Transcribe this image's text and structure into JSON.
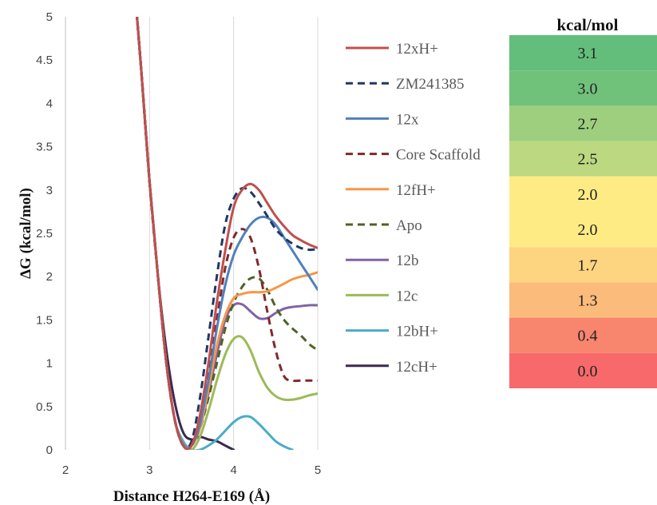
{
  "chart_data": {
    "type": "line",
    "xlabel": "Distance H264-E169 (Å)",
    "ylabel": "ΔG (kcal/mol)",
    "xlim": [
      2,
      5
    ],
    "ylim": [
      0,
      5
    ],
    "x_ticks": [
      "2",
      "3",
      "4",
      "5"
    ],
    "y_ticks": [
      "0",
      "0.5",
      "1",
      "1.5",
      "2",
      "2.5",
      "3",
      "3.5",
      "4",
      "4.5",
      "5"
    ],
    "grid": "vertical",
    "legend_position": "right",
    "series": [
      {
        "name": "12xH+",
        "color": "#c0504d",
        "dash": "solid",
        "x": [
          2.8,
          2.9,
          3.0,
          3.1,
          3.2,
          3.3,
          3.4,
          3.5,
          3.6,
          3.7,
          3.8,
          3.9,
          4.0,
          4.1,
          4.2,
          4.3,
          4.4,
          4.5,
          4.6,
          4.7,
          4.8,
          4.9,
          5.0
        ],
        "y": [
          5.6,
          4.4,
          3.1,
          2.0,
          1.0,
          0.35,
          0.05,
          0.05,
          0.4,
          1.0,
          1.7,
          2.3,
          2.8,
          3.0,
          3.07,
          3.0,
          2.85,
          2.7,
          2.58,
          2.48,
          2.42,
          2.37,
          2.33
        ]
      },
      {
        "name": "ZM241385",
        "color": "#1f3864",
        "dash": "dashed",
        "x": [
          2.8,
          2.9,
          3.0,
          3.1,
          3.2,
          3.3,
          3.4,
          3.5,
          3.6,
          3.7,
          3.8,
          3.9,
          4.0,
          4.1,
          4.2,
          4.3,
          4.4,
          4.5,
          4.6,
          4.7,
          4.8,
          4.9,
          5.0
        ],
        "y": [
          5.6,
          4.4,
          3.1,
          2.0,
          1.0,
          0.35,
          0.05,
          0.1,
          0.6,
          1.3,
          2.0,
          2.6,
          2.9,
          3.02,
          2.98,
          2.85,
          2.7,
          2.55,
          2.45,
          2.38,
          2.33,
          2.31,
          2.32
        ]
      },
      {
        "name": "12x",
        "color": "#4f81bd",
        "dash": "solid",
        "x": [
          2.8,
          2.9,
          3.0,
          3.1,
          3.2,
          3.3,
          3.4,
          3.5,
          3.6,
          3.7,
          3.8,
          3.9,
          4.0,
          4.1,
          4.2,
          4.3,
          4.4,
          4.5,
          4.6,
          4.7,
          4.8,
          4.9,
          5.0
        ],
        "y": [
          5.6,
          4.4,
          3.1,
          2.0,
          1.0,
          0.35,
          0.05,
          0.05,
          0.3,
          0.8,
          1.4,
          1.9,
          2.25,
          2.45,
          2.6,
          2.68,
          2.68,
          2.6,
          2.45,
          2.3,
          2.15,
          2.0,
          1.85
        ]
      },
      {
        "name": "Core Scaffold",
        "color": "#7f2a2a",
        "dash": "dashed",
        "x": [
          2.8,
          2.9,
          3.0,
          3.1,
          3.2,
          3.3,
          3.4,
          3.5,
          3.6,
          3.7,
          3.8,
          3.9,
          4.0,
          4.1,
          4.2,
          4.3,
          4.4,
          4.5,
          4.6,
          4.7,
          4.8,
          4.9,
          5.0
        ],
        "y": [
          5.6,
          4.4,
          3.1,
          2.0,
          1.0,
          0.35,
          0.05,
          0.05,
          0.3,
          0.9,
          1.5,
          2.1,
          2.45,
          2.55,
          2.45,
          2.1,
          1.6,
          1.15,
          0.85,
          0.8,
          0.8,
          0.8,
          0.8
        ]
      },
      {
        "name": "12fH+",
        "color": "#f79646",
        "dash": "solid",
        "x": [
          2.8,
          2.9,
          3.0,
          3.1,
          3.2,
          3.3,
          3.4,
          3.5,
          3.6,
          3.7,
          3.8,
          3.9,
          4.0,
          4.1,
          4.2,
          4.3,
          4.4,
          4.5,
          4.6,
          4.7,
          4.8,
          4.9,
          5.0
        ],
        "y": [
          5.6,
          4.4,
          3.1,
          2.0,
          1.0,
          0.35,
          0.05,
          0.05,
          0.25,
          0.7,
          1.2,
          1.55,
          1.75,
          1.8,
          1.82,
          1.82,
          1.83,
          1.87,
          1.92,
          1.97,
          2.0,
          2.02,
          2.05
        ]
      },
      {
        "name": "Apo",
        "color": "#4f6228",
        "dash": "dashed",
        "x": [
          2.8,
          2.9,
          3.0,
          3.1,
          3.2,
          3.3,
          3.4,
          3.5,
          3.6,
          3.7,
          3.8,
          3.9,
          4.0,
          4.1,
          4.2,
          4.3,
          4.4,
          4.5,
          4.6,
          4.7,
          4.8,
          4.9,
          5.0
        ],
        "y": [
          5.6,
          4.4,
          3.1,
          2.0,
          1.0,
          0.35,
          0.05,
          0.05,
          0.25,
          0.6,
          1.0,
          1.4,
          1.7,
          1.88,
          1.98,
          1.98,
          1.85,
          1.65,
          1.5,
          1.4,
          1.32,
          1.22,
          1.15
        ]
      },
      {
        "name": "12b",
        "color": "#8064a2",
        "dash": "solid",
        "x": [
          2.8,
          2.9,
          3.0,
          3.1,
          3.2,
          3.3,
          3.4,
          3.5,
          3.6,
          3.7,
          3.8,
          3.9,
          4.0,
          4.1,
          4.2,
          4.3,
          4.4,
          4.5,
          4.6,
          4.7,
          4.8,
          4.9,
          5.0
        ],
        "y": [
          5.6,
          4.4,
          3.1,
          2.0,
          1.0,
          0.35,
          0.05,
          0.05,
          0.25,
          0.65,
          1.1,
          1.5,
          1.67,
          1.68,
          1.6,
          1.52,
          1.52,
          1.58,
          1.63,
          1.65,
          1.66,
          1.67,
          1.67
        ]
      },
      {
        "name": "12c",
        "color": "#9bbb59",
        "dash": "solid",
        "x": [
          2.8,
          2.9,
          3.0,
          3.1,
          3.2,
          3.3,
          3.4,
          3.5,
          3.6,
          3.7,
          3.8,
          3.9,
          4.0,
          4.1,
          4.2,
          4.3,
          4.4,
          4.5,
          4.6,
          4.7,
          4.8,
          4.9,
          5.0
        ],
        "y": [
          5.6,
          4.4,
          3.1,
          2.0,
          1.0,
          0.35,
          0.05,
          0.0,
          0.15,
          0.45,
          0.8,
          1.1,
          1.28,
          1.3,
          1.15,
          0.9,
          0.72,
          0.62,
          0.58,
          0.58,
          0.6,
          0.63,
          0.65
        ]
      },
      {
        "name": "12bH+",
        "color": "#4bacc6",
        "dash": "solid",
        "x": [
          2.8,
          2.9,
          3.0,
          3.1,
          3.2,
          3.3,
          3.4,
          3.5,
          3.6,
          3.7,
          3.8,
          3.9,
          4.0,
          4.1,
          4.2,
          4.3,
          4.4,
          4.5,
          4.6,
          4.7
        ],
        "y": [
          5.6,
          4.4,
          3.1,
          2.0,
          1.0,
          0.35,
          0.1,
          0.0,
          0.0,
          0.05,
          0.12,
          0.22,
          0.32,
          0.38,
          0.38,
          0.3,
          0.2,
          0.1,
          0.04,
          0.0
        ]
      },
      {
        "name": "12cH+",
        "color": "#3b2a4f",
        "dash": "solid",
        "x": [
          2.8,
          2.9,
          3.0,
          3.1,
          3.2,
          3.3,
          3.4,
          3.5,
          3.6,
          3.7,
          3.8,
          3.9,
          4.0
        ],
        "y": [
          5.6,
          4.4,
          3.1,
          2.0,
          1.15,
          0.55,
          0.2,
          0.12,
          0.15,
          0.12,
          0.1,
          0.05,
          0.0
        ]
      }
    ]
  },
  "heat_table": {
    "header": "kcal/mol",
    "cells": [
      {
        "label": "3.1",
        "color": "#63be7b"
      },
      {
        "label": "3.0",
        "color": "#70c27b"
      },
      {
        "label": "2.7",
        "color": "#9dcf7e"
      },
      {
        "label": "2.5",
        "color": "#bcd880"
      },
      {
        "label": "2.0",
        "color": "#ffeb84"
      },
      {
        "label": "2.0",
        "color": "#ffeb84"
      },
      {
        "label": "1.7",
        "color": "#fdd480"
      },
      {
        "label": "1.3",
        "color": "#fbbb7b"
      },
      {
        "label": "0.4",
        "color": "#f8856e"
      },
      {
        "label": "0.0",
        "color": "#f8696b"
      }
    ]
  }
}
